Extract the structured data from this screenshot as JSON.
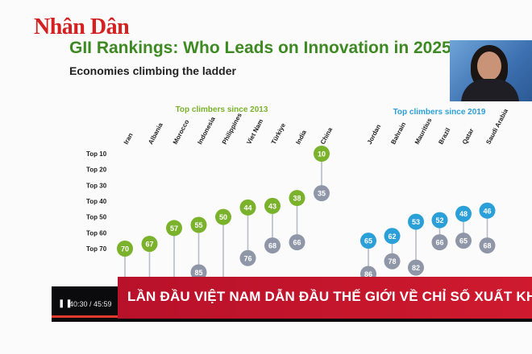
{
  "brand": {
    "logo": "Nhân Dân"
  },
  "slide": {
    "title": "GII Rankings: Who Leads on Innovation in 2025?",
    "subtitle": "Economies climbing the ladder"
  },
  "chart_data": {
    "type": "dot-range",
    "y_labels": [
      "Top 10",
      "Top 20",
      "Top 30",
      "Top 40",
      "Top 50",
      "Top 60",
      "Top 70"
    ],
    "groups": [
      {
        "title": "Top climbers since 2013",
        "color_new": "#7ab22c",
        "color_old": "#8f96a8",
        "countries": [
          {
            "name": "Iran",
            "new": 70,
            "old": null
          },
          {
            "name": "Albania",
            "new": 67,
            "old": null
          },
          {
            "name": "Morocco",
            "new": 57,
            "old": null
          },
          {
            "name": "Indonesia",
            "new": 55,
            "old": 85
          },
          {
            "name": "Philippines",
            "new": 50,
            "old": null
          },
          {
            "name": "Viet Nam",
            "new": 44,
            "old": 76
          },
          {
            "name": "Türkiye",
            "new": 43,
            "old": 68
          },
          {
            "name": "India",
            "new": 38,
            "old": 66
          },
          {
            "name": "China",
            "new": 10,
            "old": 35
          }
        ]
      },
      {
        "title": "Top climbers since 2019",
        "color_new": "#2b9fd8",
        "color_old": "#8f96a8",
        "countries": [
          {
            "name": "Jordan",
            "new": 65,
            "old": 86
          },
          {
            "name": "Bahrain",
            "new": 62,
            "old": 78
          },
          {
            "name": "Mauritius",
            "new": 53,
            "old": 82
          },
          {
            "name": "Brazil",
            "new": 52,
            "old": 66
          },
          {
            "name": "Qatar",
            "new": 48,
            "old": 65
          },
          {
            "name": "Saudi Arabia",
            "new": 46,
            "old": 68
          }
        ]
      }
    ]
  },
  "video": {
    "play_icon": "pause-icon",
    "time": "40:30 / 45:59",
    "progress": 0.88,
    "accent": "#e23b2e"
  },
  "ticker": {
    "text": "LẦN ĐẦU VIỆT NAM DẪN ĐẦU THẾ GIỚI VỀ CHỈ SỐ XUẤT KHẨU HÀNG HÓA SÁ"
  }
}
